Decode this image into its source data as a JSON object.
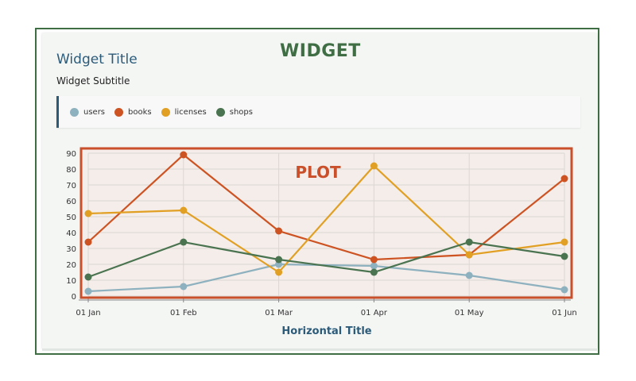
{
  "widget": {
    "label": "WIDGET",
    "title": "Widget Title",
    "subtitle": "Widget Subtitle",
    "plot_label": "PLOT"
  },
  "colors": {
    "users": "#8eb1bf",
    "books": "#cd5322",
    "licenses": "#e1a023",
    "shops": "#4a7350",
    "frame": "#3f6e44",
    "plot_border": "#c9502a"
  },
  "chart_data": {
    "type": "line",
    "title": "Widget Title",
    "subtitle": "Widget Subtitle",
    "xlabel": "Horizontal Title",
    "ylabel": "",
    "x": [
      "01 Jan",
      "01 Feb",
      "01 Mar",
      "01 Apr",
      "01 May",
      "01 Jun"
    ],
    "ylim": [
      0,
      90
    ],
    "yticks": [
      0,
      10,
      20,
      30,
      40,
      50,
      60,
      70,
      80,
      90
    ],
    "grid": true,
    "legend_position": "top",
    "series": [
      {
        "name": "users",
        "color": "#8eb1bf",
        "values": [
          3,
          6,
          20,
          19,
          13,
          4
        ]
      },
      {
        "name": "books",
        "color": "#cd5322",
        "values": [
          34,
          89,
          41,
          23,
          26,
          74
        ]
      },
      {
        "name": "licenses",
        "color": "#e1a023",
        "values": [
          52,
          54,
          15,
          82,
          26,
          34
        ]
      },
      {
        "name": "shops",
        "color": "#4a7350",
        "values": [
          12,
          34,
          23,
          15,
          34,
          25
        ]
      }
    ]
  }
}
